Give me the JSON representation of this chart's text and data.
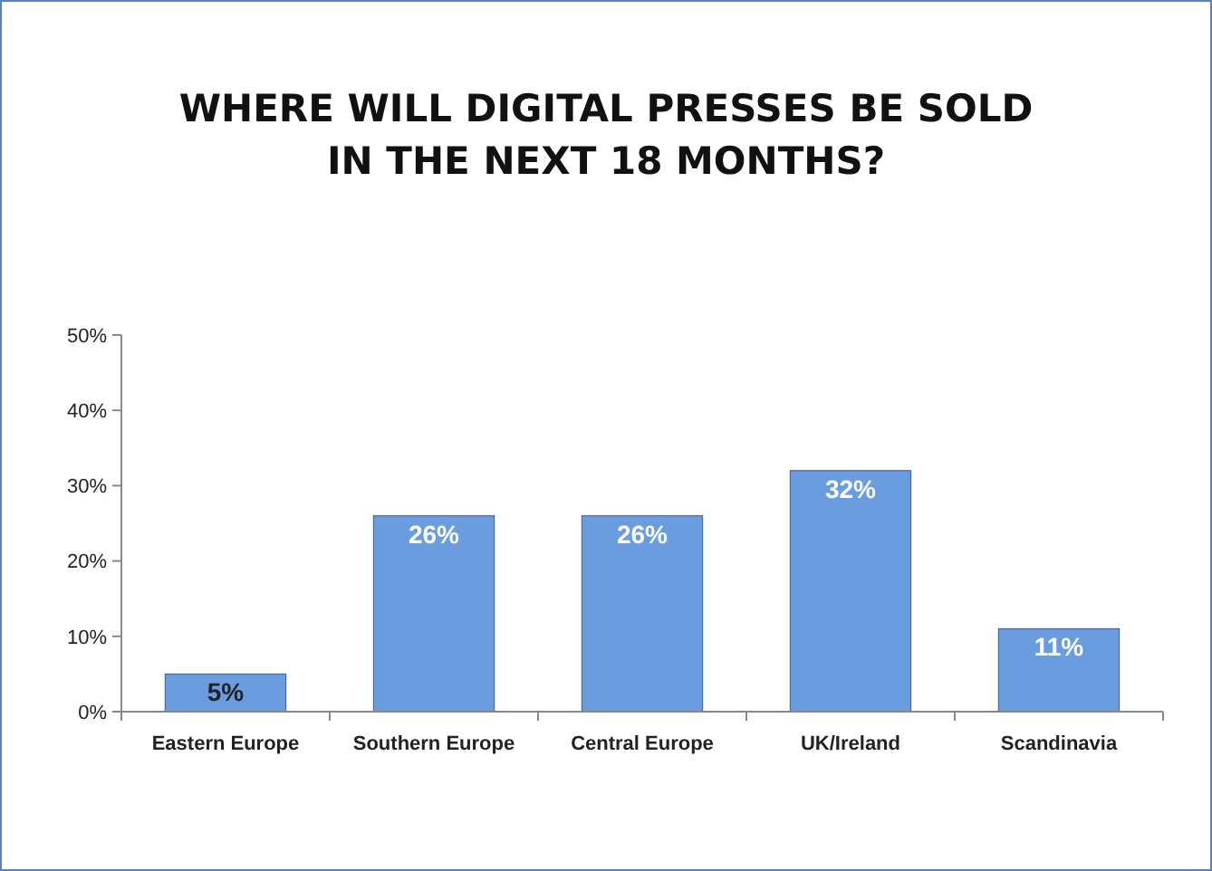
{
  "chart_data": {
    "type": "bar",
    "title": "WHERE WILL DIGITAL PRESSES BE SOLD\nIN THE NEXT 18 MONTHS?",
    "categories": [
      "Eastern Europe",
      "Southern Europe",
      "Central Europe",
      "UK/Ireland",
      "Scandinavia"
    ],
    "values": [
      5,
      26,
      26,
      32,
      11
    ],
    "value_labels": [
      "5%",
      "26%",
      "26%",
      "32%",
      "11%"
    ],
    "color": "#6a9de0",
    "ylim": [
      0,
      50
    ],
    "yticks": [
      {
        "value": 0,
        "label": "0%"
      },
      {
        "value": 10,
        "label": "10%"
      },
      {
        "value": 20,
        "label": "20%"
      },
      {
        "value": 30,
        "label": "30%"
      },
      {
        "value": 40,
        "label": "40%"
      },
      {
        "value": 50,
        "label": "50%"
      }
    ],
    "grid": false
  }
}
